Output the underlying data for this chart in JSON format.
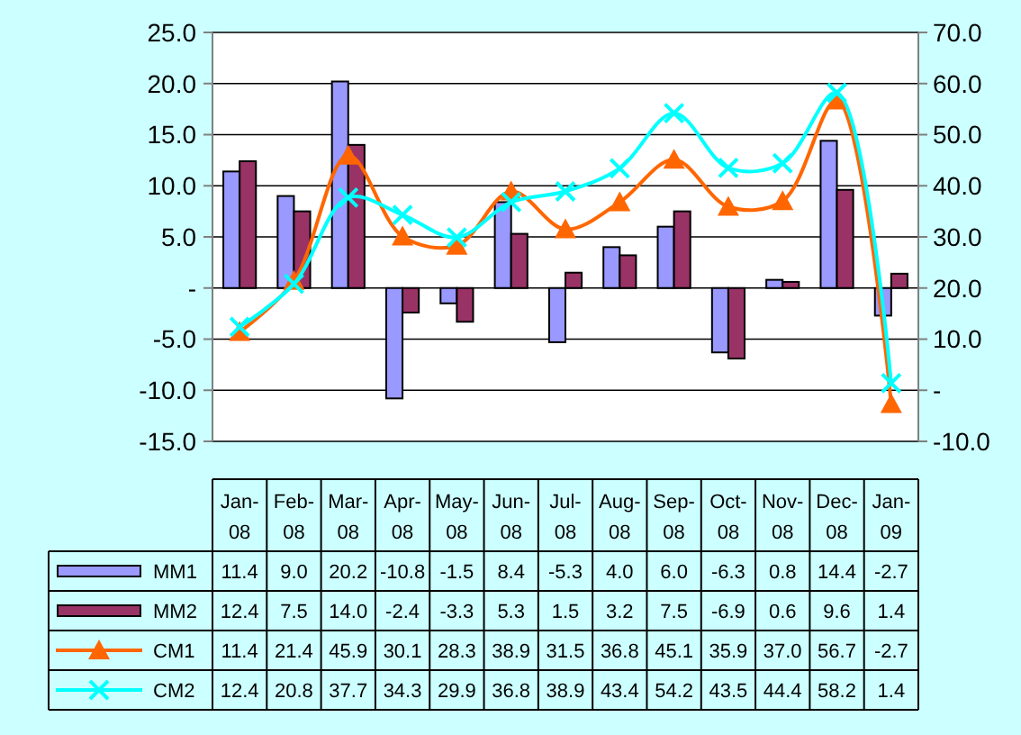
{
  "chart_data": {
    "type": "bar",
    "categories": [
      "Jan-08",
      "Feb-08",
      "Mar-08",
      "Apr-08",
      "May-08",
      "Jun-08",
      "Jul-08",
      "Aug-08",
      "Sep-08",
      "Oct-08",
      "Nov-08",
      "Dec-08",
      "Jan-09"
    ],
    "series": [
      {
        "name": "MM1",
        "color": "#9999ff",
        "values": [
          11.4,
          9.0,
          20.2,
          -10.8,
          -1.5,
          8.4,
          -5.3,
          4.0,
          6.0,
          -6.3,
          0.8,
          14.4,
          -2.7
        ],
        "value_labels": [
          "11.4",
          "9.0",
          "20.2",
          "-10.8",
          "-1.5",
          "8.4",
          "-5.3",
          "4.0",
          "6.0",
          "-6.3",
          "0.8",
          "14.4",
          "-2.7"
        ]
      },
      {
        "name": "MM2",
        "color": "#993366",
        "values": [
          12.4,
          7.5,
          14.0,
          -2.4,
          -3.3,
          5.3,
          1.5,
          3.2,
          7.5,
          -6.9,
          0.6,
          9.6,
          1.4
        ],
        "value_labels": [
          "12.4",
          "7.5",
          "14.0",
          "-2.4",
          "-3.3",
          "5.3",
          "1.5",
          "3.2",
          "7.5",
          "-6.9",
          "0.6",
          "9.6",
          "1.4"
        ]
      },
      {
        "name": "CM1",
        "type": "line",
        "axis": "y2",
        "color": "#ff6600",
        "marker": "triangle",
        "values": [
          11.4,
          21.4,
          45.9,
          30.1,
          28.3,
          38.9,
          31.5,
          36.8,
          45.1,
          35.9,
          37.0,
          56.7,
          -2.7
        ],
        "value_labels": [
          "11.4",
          "21.4",
          "45.9",
          "30.1",
          "28.3",
          "38.9",
          "31.5",
          "36.8",
          "45.1",
          "35.9",
          "37.0",
          "56.7",
          "-2.7"
        ]
      },
      {
        "name": "CM2",
        "type": "line",
        "axis": "y2",
        "color": "#00ffff",
        "marker": "cross",
        "values": [
          12.4,
          20.8,
          37.7,
          34.3,
          29.9,
          36.8,
          38.9,
          43.4,
          54.2,
          43.5,
          44.4,
          58.2,
          1.4
        ],
        "value_labels": [
          "12.4",
          "20.8",
          "37.7",
          "34.3",
          "29.9",
          "36.8",
          "38.9",
          "43.4",
          "54.2",
          "43.5",
          "44.4",
          "58.2",
          "1.4"
        ]
      }
    ],
    "ylim": [
      -15,
      25
    ],
    "yticks": [
      {
        "value": -15,
        "label": "-15.0"
      },
      {
        "value": -10,
        "label": "-10.0"
      },
      {
        "value": -5,
        "label": "-5.0"
      },
      {
        "value": 0,
        "label": "-"
      },
      {
        "value": 5,
        "label": "5.0"
      },
      {
        "value": 10,
        "label": "10.0"
      },
      {
        "value": 15,
        "label": "15.0"
      },
      {
        "value": 20,
        "label": "20.0"
      },
      {
        "value": 25,
        "label": "25.0"
      }
    ],
    "y2lim": [
      -10,
      70
    ],
    "y2ticks": [
      {
        "value": -10,
        "label": "-10.0"
      },
      {
        "value": 0,
        "label": "-"
      },
      {
        "value": 10,
        "label": "10.0"
      },
      {
        "value": 20,
        "label": "20.0"
      },
      {
        "value": 30,
        "label": "30.0"
      },
      {
        "value": 40,
        "label": "40.0"
      },
      {
        "value": 50,
        "label": "50.0"
      },
      {
        "value": 60,
        "label": "60.0"
      },
      {
        "value": 70,
        "label": "70.0"
      }
    ],
    "grid": "y",
    "legend": "bottom"
  }
}
